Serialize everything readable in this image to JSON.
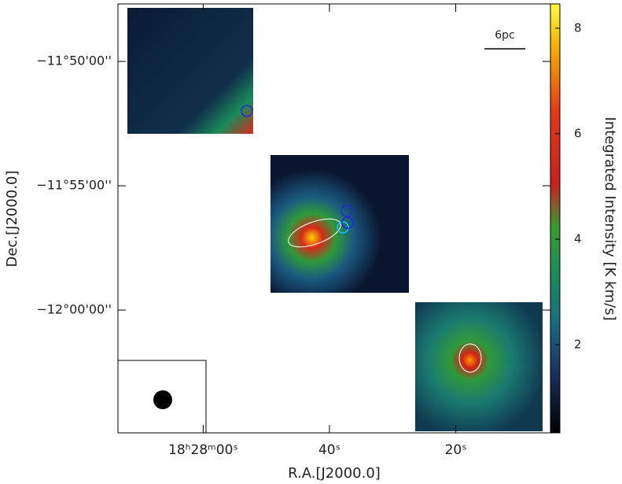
{
  "chart_data": {
    "type": "image",
    "x_label": "R.A.[J2000.0]",
    "y_label": "Dec.[J2000.0]",
    "xlim": [
      73.5,
      5
    ],
    "xticks": [
      {
        "value": 60,
        "label": "18ʰ28ᵐ00ˢ"
      },
      {
        "value": 40,
        "label": "40ˢ"
      },
      {
        "value": 20,
        "label": "20ˢ"
      }
    ],
    "ylim": [
      -12.0823,
      -11.7948
    ],
    "yticks": [
      {
        "value": -11.83333,
        "label": "−11°50'00''"
      },
      {
        "value": -11.91667,
        "label": "−11°55'00''"
      },
      {
        "value": -12,
        "label": "−12°00'00''"
      }
    ],
    "colorbar": {
      "label": "Integrated Intensity [K km/s]",
      "lim": [
        0.33,
        8.46
      ],
      "ticks": [
        2,
        4,
        6,
        8
      ]
    },
    "scale_bar": "6pc"
  }
}
